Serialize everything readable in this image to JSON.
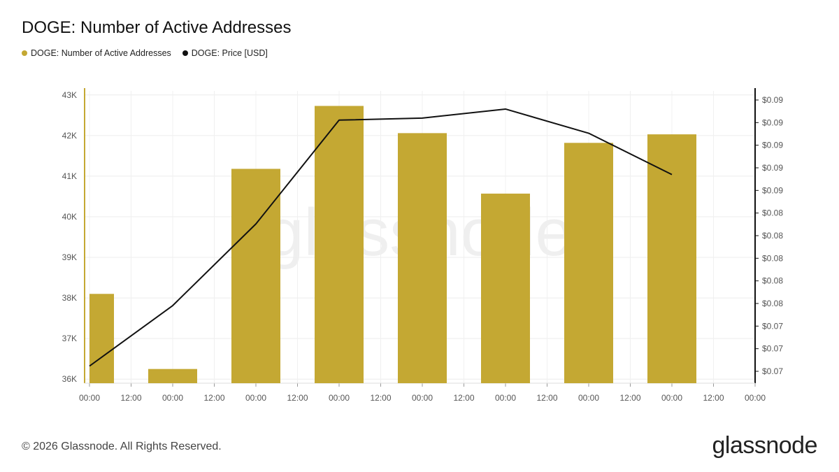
{
  "title": "DOGE: Number of Active Addresses",
  "legend": [
    {
      "label": "DOGE: Number of Active Addresses",
      "color": "#c4a833"
    },
    {
      "label": "DOGE: Price [USD]",
      "color": "#111111"
    }
  ],
  "watermark": "glassnode",
  "footer": "© 2026 Glassnode. All Rights Reserved.",
  "logo": "glassnode",
  "chart_data": {
    "type": "bar",
    "x_ticks": [
      "00:00",
      "12:00",
      "00:00",
      "12:00",
      "00:00",
      "12:00",
      "00:00",
      "12:00",
      "00:00",
      "12:00",
      "00:00",
      "12:00",
      "00:00",
      "12:00",
      "00:00",
      "12:00",
      "00:00"
    ],
    "ylim": [
      35900,
      43100
    ],
    "yticks": [
      36000,
      37000,
      38000,
      39000,
      40000,
      41000,
      42000,
      43000
    ],
    "ytick_labels": [
      "36K",
      "37K",
      "38K",
      "39K",
      "40K",
      "41K",
      "42K",
      "43K"
    ],
    "y2_tick_labels": [
      "$0.09",
      "$0.09",
      "$0.09",
      "$0.09",
      "$0.09",
      "$0.08",
      "$0.08",
      "$0.08",
      "$0.08",
      "$0.08",
      "$0.07",
      "$0.07",
      "$0.07"
    ],
    "series": [
      {
        "name": "DOGE: Number of Active Addresses",
        "type": "bar",
        "color": "#c4a833",
        "values": [
          38100,
          36250,
          41180,
          42730,
          42060,
          40570,
          41820,
          42030
        ]
      },
      {
        "name": "DOGE: Price [USD]",
        "type": "line",
        "color": "#111111",
        "values": [
          0.0667,
          0.0727,
          0.0808,
          0.0911,
          0.0913,
          0.0922,
          0.0898,
          0.0857
        ]
      }
    ],
    "y2lim": [
      0.065,
      0.094
    ],
    "grid": true,
    "legend_position": "top-left"
  }
}
